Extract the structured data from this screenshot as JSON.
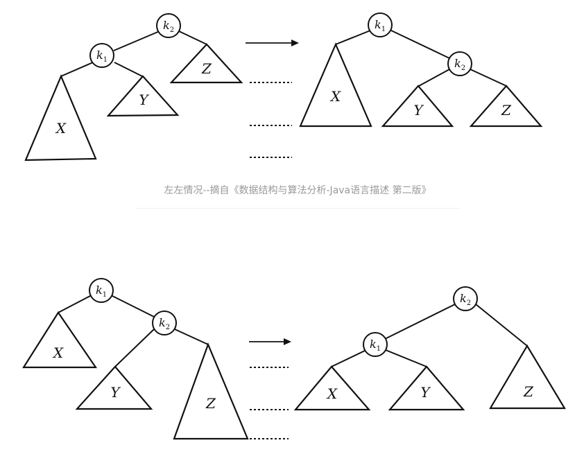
{
  "caption": "左左情况--摘自《数据结构与算法分析-Java语言描述 第二版》",
  "top": {
    "before": {
      "root": {
        "letter": "k",
        "sub": "2"
      },
      "child": {
        "letter": "k",
        "sub": "1"
      },
      "subtrees": [
        "X",
        "Y",
        "Z"
      ]
    },
    "after": {
      "root": {
        "letter": "k",
        "sub": "1"
      },
      "child": {
        "letter": "k",
        "sub": "2"
      },
      "subtrees": [
        "X",
        "Y",
        "Z"
      ]
    }
  },
  "bottom": {
    "before": {
      "root": {
        "letter": "k",
        "sub": "1"
      },
      "child": {
        "letter": "k",
        "sub": "2"
      },
      "subtrees": [
        "X",
        "Y",
        "Z"
      ]
    },
    "after": {
      "root": {
        "letter": "k",
        "sub": "2"
      },
      "child": {
        "letter": "k",
        "sub": "1"
      },
      "subtrees": [
        "X",
        "Y",
        "Z"
      ]
    }
  }
}
